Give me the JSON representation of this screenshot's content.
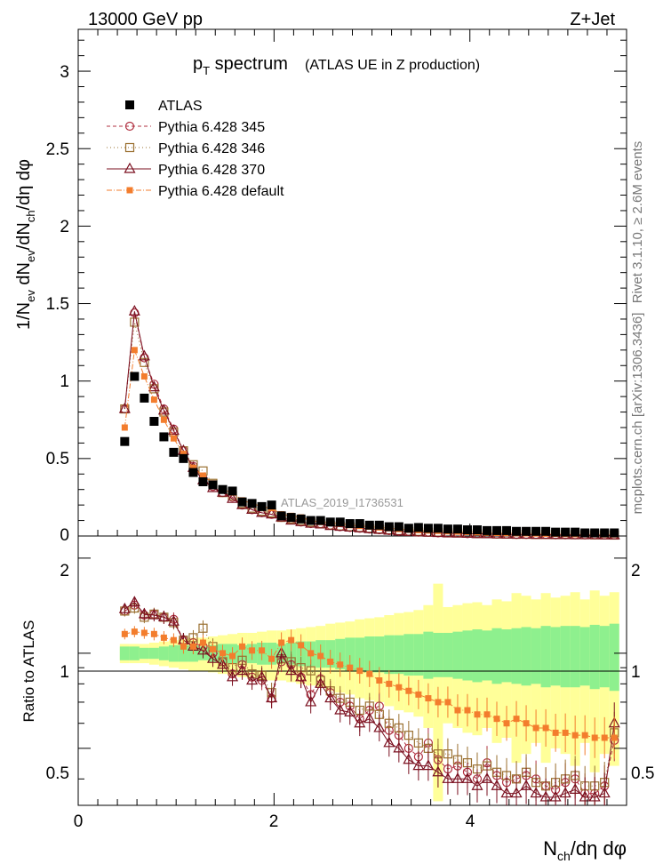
{
  "header": {
    "left": "13000 GeV pp",
    "right": "Z+Jet"
  },
  "title": {
    "main": "p",
    "main_sub": "T",
    "main_rest": " spectrum",
    "paren": "(ATLAS UE in Z production)"
  },
  "side_labels": {
    "rivet": "Rivet 3.1.10, ≥ 2.6M events",
    "mcplots": "mcplots.cern.ch [arXiv:1306.3436]"
  },
  "watermark": "ATLAS_2019_I1736531",
  "axes": {
    "ylabel_top": "1/N_ev dN_ev/dN_ch/dη dφ",
    "ylabel_bottom": "Ratio to ATLAS",
    "xlabel": "N_ch/dη dφ",
    "x_ticks": [
      "0",
      "2",
      "4"
    ],
    "y_ticks_top": [
      "0",
      "0.5",
      "1",
      "1.5",
      "2",
      "2.5",
      "3"
    ],
    "y_ticks_bottom": [
      "0.5",
      "1",
      "2"
    ]
  },
  "chart_data": {
    "type": "scatter",
    "x": [
      0.475,
      0.575,
      0.675,
      0.775,
      0.875,
      0.975,
      1.075,
      1.175,
      1.275,
      1.375,
      1.475,
      1.575,
      1.675,
      1.775,
      1.875,
      1.975,
      2.075,
      2.175,
      2.275,
      2.375,
      2.475,
      2.575,
      2.675,
      2.775,
      2.875,
      2.975,
      3.075,
      3.175,
      3.275,
      3.375,
      3.475,
      3.575,
      3.675,
      3.775,
      3.875,
      3.975,
      4.075,
      4.175,
      4.275,
      4.375,
      4.475,
      4.575,
      4.675,
      4.775,
      4.875,
      4.975,
      5.075,
      5.175,
      5.275,
      5.375,
      5.475
    ],
    "xlim": [
      0,
      5.6
    ],
    "ylim_top": [
      0,
      3.27
    ],
    "ylim_ratio": [
      0.33,
      2.35
    ],
    "series": [
      {
        "name": "ATLAS",
        "marker": "filled-square",
        "color": "#000000",
        "values": [
          0.61,
          1.03,
          0.89,
          0.74,
          0.64,
          0.54,
          0.5,
          0.41,
          0.35,
          0.33,
          0.3,
          0.29,
          0.22,
          0.21,
          0.19,
          0.2,
          0.13,
          0.12,
          0.11,
          0.1,
          0.1,
          0.09,
          0.09,
          0.08,
          0.08,
          0.07,
          0.07,
          0.06,
          0.06,
          0.05,
          0.055,
          0.05,
          0.05,
          0.045,
          0.045,
          0.04,
          0.04,
          0.035,
          0.035,
          0.035,
          0.03,
          0.03,
          0.03,
          0.03,
          0.025,
          0.025,
          0.025,
          0.02,
          0.02,
          0.02,
          0.02
        ],
        "ratio": [
          1,
          1,
          1,
          1,
          1,
          1,
          1,
          1,
          1,
          1,
          1,
          1,
          1,
          1,
          1,
          1,
          1,
          1,
          1,
          1,
          1,
          1,
          1,
          1,
          1,
          1,
          1,
          1,
          1,
          1,
          1,
          1,
          1,
          1,
          1,
          1,
          1,
          1,
          1,
          1,
          1,
          1,
          1,
          1,
          1,
          1,
          1,
          1,
          1,
          1,
          1
        ]
      },
      {
        "name": "Pythia 6.428 345",
        "marker": "open-circle",
        "color": "#b03040",
        "dash": "4,3",
        "values": [
          0.82,
          1.44,
          1.15,
          0.98,
          0.82,
          0.69,
          0.55,
          0.45,
          0.37,
          0.32,
          0.28,
          0.25,
          0.2,
          0.17,
          0.15,
          0.14,
          0.12,
          0.11,
          0.09,
          0.08,
          0.08,
          0.07,
          0.06,
          0.055,
          0.05,
          0.045,
          0.04,
          0.035,
          0.03,
          0.03,
          0.025,
          0.025,
          0.02,
          0.02,
          0.02,
          0.015,
          0.015,
          0.015,
          0.012,
          0.012,
          0.01,
          0.01,
          0.01,
          0.01,
          0.008,
          0.008,
          0.008,
          0.007,
          0.007,
          0.006,
          0.006
        ],
        "ratio": [
          1.36,
          1.42,
          1.32,
          1.33,
          1.3,
          1.28,
          1.1,
          1.08,
          1.05,
          1.0,
          0.94,
          0.86,
          0.92,
          0.84,
          0.82,
          0.72,
          0.94,
          0.92,
          0.84,
          0.74,
          0.83,
          0.75,
          0.7,
          0.68,
          0.62,
          0.66,
          0.68,
          0.57,
          0.55,
          0.5,
          0.47,
          0.52,
          0.46,
          0.43,
          0.44,
          0.42,
          0.4,
          0.45,
          0.41,
          0.39,
          0.4,
          0.41,
          0.4,
          0.38,
          0.37,
          0.39,
          0.4,
          0.36,
          0.36,
          0.38,
          0.53
        ]
      },
      {
        "name": "Pythia 6.428 346",
        "marker": "open-square",
        "color": "#9a7030",
        "dash": "1,3",
        "values": [
          0.82,
          1.38,
          1.12,
          0.95,
          0.8,
          0.67,
          0.55,
          0.46,
          0.42,
          0.34,
          0.28,
          0.26,
          0.21,
          0.18,
          0.16,
          0.15,
          0.12,
          0.11,
          0.1,
          0.09,
          0.08,
          0.07,
          0.065,
          0.06,
          0.055,
          0.05,
          0.045,
          0.04,
          0.035,
          0.03,
          0.03,
          0.025,
          0.025,
          0.02,
          0.02,
          0.018,
          0.016,
          0.015,
          0.013,
          0.012,
          0.011,
          0.011,
          0.01,
          0.01,
          0.009,
          0.009,
          0.008,
          0.008,
          0.007,
          0.007,
          0.006
        ],
        "ratio": [
          1.36,
          1.39,
          1.3,
          1.33,
          1.3,
          1.25,
          1.1,
          1.12,
          1.2,
          1.05,
          0.94,
          0.9,
          0.95,
          0.86,
          0.85,
          0.75,
          0.96,
          0.94,
          0.9,
          0.88,
          0.82,
          0.76,
          0.72,
          0.7,
          0.66,
          0.68,
          0.64,
          0.6,
          0.58,
          0.55,
          0.52,
          0.5,
          0.48,
          0.48,
          0.46,
          0.45,
          0.43,
          0.44,
          0.42,
          0.41,
          0.4,
          0.42,
          0.39,
          0.38,
          0.39,
          0.4,
          0.41,
          0.38,
          0.38,
          0.39,
          0.56
        ]
      },
      {
        "name": "Pythia 6.428 370",
        "marker": "open-triangle",
        "color": "#7a0f1f",
        "dash": "",
        "values": [
          0.82,
          1.45,
          1.16,
          0.96,
          0.81,
          0.68,
          0.55,
          0.44,
          0.36,
          0.31,
          0.28,
          0.24,
          0.2,
          0.17,
          0.15,
          0.14,
          0.12,
          0.1,
          0.09,
          0.08,
          0.075,
          0.065,
          0.06,
          0.055,
          0.05,
          0.045,
          0.04,
          0.035,
          0.03,
          0.027,
          0.024,
          0.022,
          0.02,
          0.018,
          0.016,
          0.015,
          0.013,
          0.012,
          0.011,
          0.01,
          0.009,
          0.009,
          0.008,
          0.008,
          0.007,
          0.007,
          0.006,
          0.006,
          0.006,
          0.005,
          0.005
        ],
        "ratio": [
          1.38,
          1.45,
          1.33,
          1.32,
          1.3,
          1.26,
          1.1,
          1.05,
          1.02,
          0.96,
          0.92,
          0.84,
          0.88,
          0.82,
          0.84,
          0.72,
          1.0,
          0.88,
          0.84,
          0.7,
          0.8,
          0.72,
          0.66,
          0.65,
          0.6,
          0.62,
          0.58,
          0.52,
          0.5,
          0.46,
          0.44,
          0.44,
          0.42,
          0.4,
          0.4,
          0.4,
          0.38,
          0.4,
          0.38,
          0.36,
          0.36,
          0.38,
          0.36,
          0.35,
          0.35,
          0.36,
          0.37,
          0.35,
          0.35,
          0.36,
          0.6
        ]
      },
      {
        "name": "Pythia 6.428 default",
        "marker": "filled-square-small",
        "color": "#f37d2d",
        "dash": "6,2,1,2",
        "values": [
          0.7,
          1.2,
          1.03,
          0.88,
          0.75,
          0.63,
          0.53,
          0.44,
          0.39,
          0.34,
          0.3,
          0.28,
          0.23,
          0.21,
          0.19,
          0.18,
          0.14,
          0.13,
          0.12,
          0.1,
          0.09,
          0.085,
          0.08,
          0.07,
          0.065,
          0.06,
          0.055,
          0.05,
          0.045,
          0.04,
          0.038,
          0.035,
          0.033,
          0.03,
          0.028,
          0.026,
          0.024,
          0.022,
          0.02,
          0.019,
          0.018,
          0.017,
          0.016,
          0.015,
          0.014,
          0.013,
          0.012,
          0.011,
          0.011,
          0.01,
          0.01
        ],
        "ratio": [
          1.15,
          1.17,
          1.16,
          1.15,
          1.12,
          1.1,
          1.05,
          1.05,
          1.08,
          1.03,
          1.0,
          0.98,
          1.05,
          1.02,
          1.02,
          0.96,
          1.08,
          1.1,
          1.06,
          1.0,
          0.98,
          0.94,
          0.92,
          0.9,
          0.88,
          0.86,
          0.82,
          0.8,
          0.78,
          0.76,
          0.74,
          0.72,
          0.7,
          0.7,
          0.66,
          0.66,
          0.64,
          0.64,
          0.62,
          0.6,
          0.62,
          0.6,
          0.58,
          0.58,
          0.56,
          0.56,
          0.55,
          0.55,
          0.54,
          0.54,
          0.54
        ]
      }
    ],
    "ratio_bands": {
      "green_half_width": [
        0.05,
        0.05,
        0.04,
        0.04,
        0.05,
        0.06,
        0.06,
        0.06,
        0.05,
        0.06,
        0.07,
        0.07,
        0.06,
        0.07,
        0.08,
        0.08,
        0.07,
        0.08,
        0.09,
        0.09,
        0.1,
        0.1,
        0.11,
        0.12,
        0.12,
        0.13,
        0.13,
        0.14,
        0.14,
        0.15,
        0.15,
        0.17,
        0.16,
        0.16,
        0.17,
        0.18,
        0.19,
        0.18,
        0.2,
        0.19,
        0.2,
        0.21,
        0.2,
        0.22,
        0.21,
        0.22,
        0.22,
        0.21,
        0.23,
        0.22,
        0.24
      ],
      "yellow_half_width": [
        0.07,
        0.07,
        0.07,
        0.08,
        0.09,
        0.1,
        0.11,
        0.12,
        0.12,
        0.13,
        0.14,
        0.15,
        0.16,
        0.16,
        0.17,
        0.18,
        0.18,
        0.19,
        0.2,
        0.21,
        0.22,
        0.24,
        0.25,
        0.26,
        0.28,
        0.29,
        0.3,
        0.32,
        0.34,
        0.35,
        0.37,
        0.42,
        0.66,
        0.4,
        0.42,
        0.44,
        0.45,
        0.42,
        0.48,
        0.46,
        0.55,
        0.52,
        0.48,
        0.55,
        0.5,
        0.52,
        0.56,
        0.48,
        0.58,
        0.52,
        0.56
      ]
    },
    "legend_position": "top-left",
    "grid": false
  }
}
